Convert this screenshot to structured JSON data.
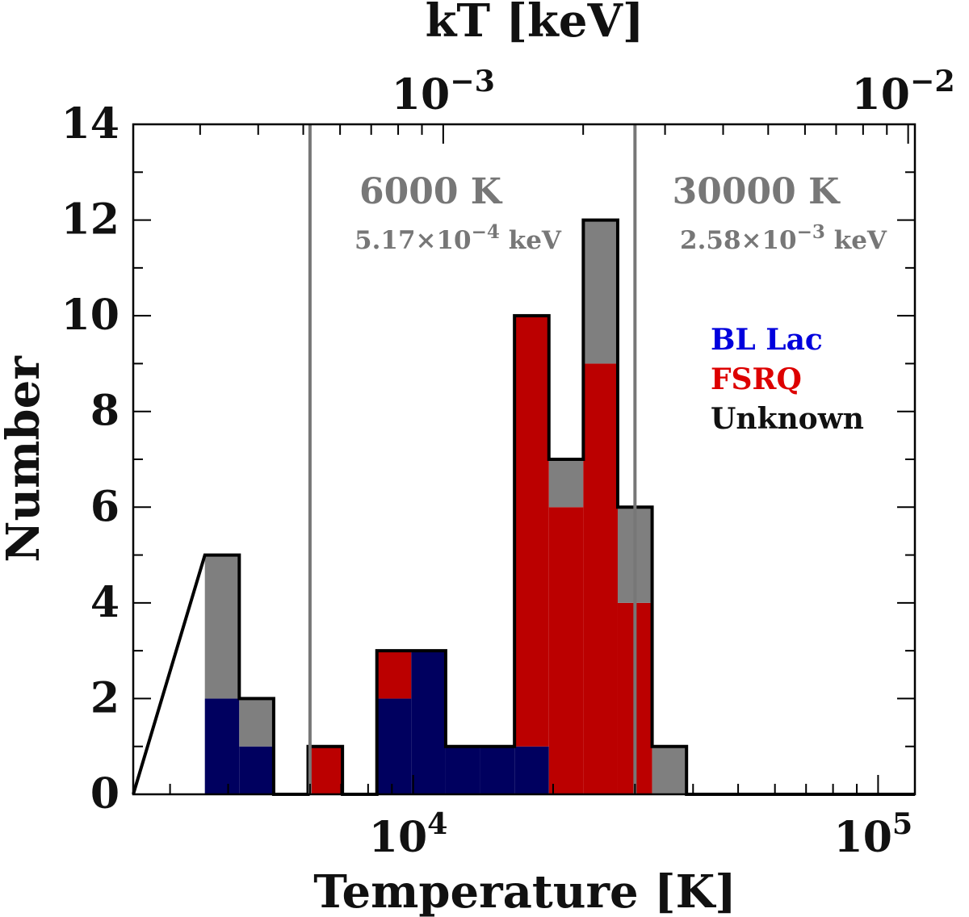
{
  "chart_data": {
    "type": "stacked-histogram",
    "title": "",
    "xlabel": "Temperature [K]",
    "ylabel": "Number",
    "top_xlabel": "kT [keV]",
    "x_scale": "log",
    "xlim": [
      2500,
      120000
    ],
    "ylim": [
      0,
      14
    ],
    "y_ticks": [
      0,
      2,
      4,
      6,
      8,
      10,
      12,
      14
    ],
    "y_tick_labels": [
      "0",
      "2",
      "4",
      "6",
      "8",
      "10",
      "12",
      "14"
    ],
    "x_tick_labels": [
      {
        "value": 10000,
        "base": "10",
        "exp": "4"
      },
      {
        "value": 100000,
        "base": "10",
        "exp": "5"
      }
    ],
    "top_tick_labels": [
      {
        "value_kev": 0.001,
        "base": "10",
        "exp": "−3"
      },
      {
        "value_kev": 0.01,
        "base": "10",
        "exp": "−2"
      }
    ],
    "bin_log_width": 0.074,
    "bin_edges_log10": [
      3.552,
      3.626,
      3.7,
      3.774,
      3.848,
      3.922,
      3.996,
      4.07,
      4.144,
      4.218,
      4.292,
      4.366,
      4.44,
      4.514,
      4.588,
      4.662
    ],
    "series": [
      {
        "name": "BL Lac",
        "color": "#00005f",
        "values": [
          2,
          1,
          0,
          0,
          0,
          2,
          3,
          1,
          1,
          1,
          0,
          0,
          0,
          0,
          0
        ]
      },
      {
        "name": "FSRQ",
        "color": "#bb0000",
        "values": [
          0,
          0,
          0,
          1,
          0,
          1,
          0,
          0,
          0,
          9,
          6,
          9,
          4,
          0,
          0
        ]
      },
      {
        "name": "Unknown",
        "color": "#7f7f7f",
        "values": [
          3,
          1,
          0,
          0,
          0,
          0,
          0,
          0,
          0,
          0,
          1,
          3,
          2,
          1,
          0
        ]
      }
    ],
    "totals": [
      5,
      2,
      0,
      1,
      0,
      3,
      3,
      1,
      1,
      10,
      7,
      12,
      6,
      1,
      0
    ],
    "legend": {
      "position": "right-middle",
      "entries": [
        {
          "label": "BL Lac",
          "color": "#0000dd"
        },
        {
          "label": "FSRQ",
          "color": "#dd0000"
        },
        {
          "label": "Unknown",
          "color": "#111111"
        }
      ]
    },
    "vlines": [
      {
        "value": 6000,
        "label": "6000 K",
        "sublabel_mantissa": "5.17×10",
        "sublabel_exp": "−4",
        "sublabel_unit": " keV",
        "color": "#777777"
      },
      {
        "value": 30000,
        "label": "30000 K",
        "sublabel_mantissa": "2.58×10",
        "sublabel_exp": "−3",
        "sublabel_unit": " keV",
        "color": "#777777"
      }
    ]
  }
}
